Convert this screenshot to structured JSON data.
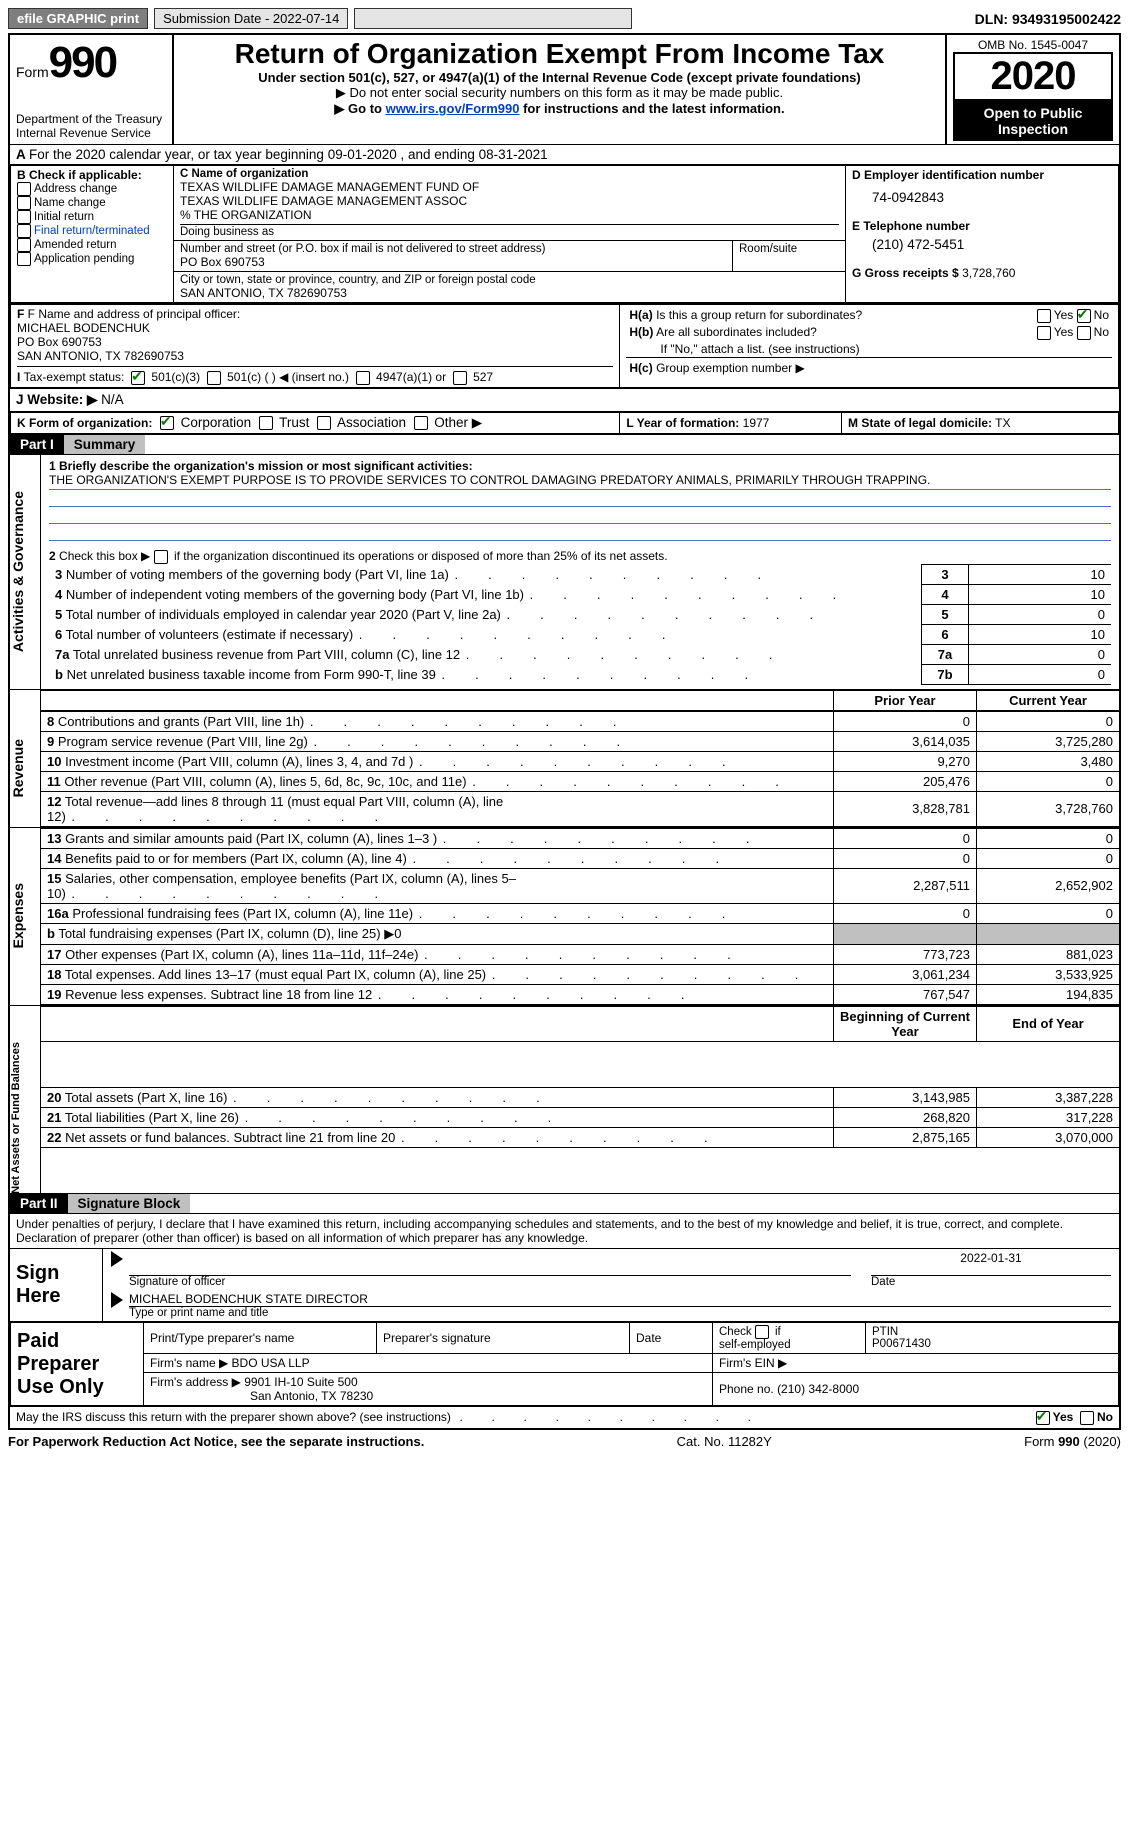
{
  "topbar": {
    "efile": "efile GRAPHIC print",
    "submission_label": "Submission Date - 2022-07-14",
    "dln": "DLN: 93493195002422"
  },
  "header": {
    "form_word": "Form",
    "form_num": "990",
    "dept": "Department of the Treasury",
    "irs": "Internal Revenue Service",
    "title": "Return of Organization Exempt From Income Tax",
    "sub1": "Under section 501(c), 527, or 4947(a)(1) of the Internal Revenue Code (except private foundations)",
    "sub2": "▶ Do not enter social security numbers on this form as it may be made public.",
    "sub3a": "▶ Go to ",
    "sub3link": "www.irs.gov/Form990",
    "sub3b": " for instructions and the latest information.",
    "omb": "OMB No. 1545-0047",
    "year": "2020",
    "open": "Open to Public Inspection"
  },
  "periodA": {
    "text_a": "For the 2020 calendar year, or tax year beginning 09-01-2020",
    "text_b": ", and ending 08-31-2021"
  },
  "boxB": {
    "label": "B Check if applicable:",
    "items": [
      "Address change",
      "Name change",
      "Initial return",
      "Final return/terminated",
      "Amended return",
      "Application pending"
    ],
    "colors": [
      "#000",
      "#000",
      "#000",
      "#0040c0",
      "#000",
      "#000"
    ]
  },
  "boxC": {
    "label": "C Name of organization",
    "name1": "TEXAS WILDLIFE DAMAGE MANAGEMENT FUND OF",
    "name2": "TEXAS WILDLIFE DAMAGE MANAGEMENT ASSOC",
    "name3": "% THE ORGANIZATION",
    "dba": "Doing business as",
    "street_label": "Number and street (or P.O. box if mail is not delivered to street address)",
    "room": "Room/suite",
    "street": "PO Box 690753",
    "city_label": "City or town, state or province, country, and ZIP or foreign postal code",
    "city": "SAN ANTONIO, TX  782690753"
  },
  "boxD": {
    "label": "D Employer identification number",
    "value": "74-0942843"
  },
  "boxE": {
    "label": "E Telephone number",
    "value": "(210) 472-5451"
  },
  "boxG": {
    "label": "G Gross receipts $",
    "value": "3,728,760"
  },
  "boxF": {
    "label": "F Name and address of principal officer:",
    "name": "MICHAEL BODENCHUK",
    "addr1": "PO Box 690753",
    "addr2": "SAN ANTONIO, TX  782690753"
  },
  "boxH": {
    "ha": "H(a)  Is this a group return for subordinates?",
    "hb": "H(b)  Are all subordinates included?",
    "hnote": "If \"No,\" attach a list. (see instructions)",
    "hc": "H(c)  Group exemption number ▶",
    "yes": "Yes",
    "no": "No"
  },
  "boxI": {
    "label": "Tax-exempt status:",
    "opts": [
      "501(c)(3)",
      "501(c) (  ) ◀ (insert no.)",
      "4947(a)(1) or",
      "527"
    ]
  },
  "boxJ": {
    "label": "J   Website: ▶",
    "value": "N/A"
  },
  "boxK": {
    "label": "K Form of organization:",
    "opts": [
      "Corporation",
      "Trust",
      "Association",
      "Other ▶"
    ]
  },
  "boxL": {
    "label": "L Year of formation:",
    "value": "1977"
  },
  "boxM": {
    "label": "M State of legal domicile:",
    "value": "TX"
  },
  "part1": {
    "label": "Part I",
    "title": "Summary"
  },
  "summary": {
    "line1_label": "1  Briefly describe the organization's mission or most significant activities:",
    "line1_text": "THE ORGANIZATION'S EXEMPT PURPOSE IS TO PROVIDE SERVICES TO CONTROL DAMAGING PREDATORY ANIMALS, PRIMARILY THROUGH TRAPPING.",
    "line2": "2   Check this box ▶           if the organization discontinued its operations or disposed of more than 25% of its net assets.",
    "govLabel": "Activities & Governance",
    "revLabel": "Revenue",
    "expLabel": "Expenses",
    "netLabel": "Net Assets or Fund Balances",
    "hdr_prior": "Prior Year",
    "hdr_current": "Current Year",
    "hdr_begin": "Beginning of Current Year",
    "hdr_end": "End of Year",
    "gov_lines": [
      {
        "n": "3",
        "t": "Number of voting members of the governing body (Part VI, line 1a)",
        "box": "3",
        "v": "10"
      },
      {
        "n": "4",
        "t": "Number of independent voting members of the governing body (Part VI, line 1b)",
        "box": "4",
        "v": "10"
      },
      {
        "n": "5",
        "t": "Total number of individuals employed in calendar year 2020 (Part V, line 2a)",
        "box": "5",
        "v": "0"
      },
      {
        "n": "6",
        "t": "Total number of volunteers (estimate if necessary)",
        "box": "6",
        "v": "10"
      },
      {
        "n": "7a",
        "t": "Total unrelated business revenue from Part VIII, column (C), line 12",
        "box": "7a",
        "v": "0"
      },
      {
        "n": "b",
        "t": "Net unrelated business taxable income from Form 990-T, line 39",
        "box": "7b",
        "v": "0"
      }
    ],
    "rev_lines": [
      {
        "n": "8",
        "t": "Contributions and grants (Part VIII, line 1h)",
        "p": "0",
        "c": "0"
      },
      {
        "n": "9",
        "t": "Program service revenue (Part VIII, line 2g)",
        "p": "3,614,035",
        "c": "3,725,280"
      },
      {
        "n": "10",
        "t": "Investment income (Part VIII, column (A), lines 3, 4, and 7d )",
        "p": "9,270",
        "c": "3,480"
      },
      {
        "n": "11",
        "t": "Other revenue (Part VIII, column (A), lines 5, 6d, 8c, 9c, 10c, and 11e)",
        "p": "205,476",
        "c": "0"
      },
      {
        "n": "12",
        "t": "Total revenue—add lines 8 through 11 (must equal Part VIII, column (A), line 12)",
        "p": "3,828,781",
        "c": "3,728,760"
      }
    ],
    "exp_lines": [
      {
        "n": "13",
        "t": "Grants and similar amounts paid (Part IX, column (A), lines 1–3 )",
        "p": "0",
        "c": "0"
      },
      {
        "n": "14",
        "t": "Benefits paid to or for members (Part IX, column (A), line 4)",
        "p": "0",
        "c": "0"
      },
      {
        "n": "15",
        "t": "Salaries, other compensation, employee benefits (Part IX, column (A), lines 5–10)",
        "p": "2,287,511",
        "c": "2,652,902"
      },
      {
        "n": "16a",
        "t": "Professional fundraising fees (Part IX, column (A), line 11e)",
        "p": "0",
        "c": "0"
      },
      {
        "n": "b",
        "t": "Total fundraising expenses (Part IX, column (D), line 25) ▶0",
        "p": "",
        "c": "",
        "grey": true
      },
      {
        "n": "17",
        "t": "Other expenses (Part IX, column (A), lines 11a–11d, 11f–24e)",
        "p": "773,723",
        "c": "881,023"
      },
      {
        "n": "18",
        "t": "Total expenses. Add lines 13–17 (must equal Part IX, column (A), line 25)",
        "p": "3,061,234",
        "c": "3,533,925"
      },
      {
        "n": "19",
        "t": "Revenue less expenses. Subtract line 18 from line 12",
        "p": "767,547",
        "c": "194,835"
      }
    ],
    "net_lines": [
      {
        "n": "20",
        "t": "Total assets (Part X, line 16)",
        "p": "3,143,985",
        "c": "3,387,228"
      },
      {
        "n": "21",
        "t": "Total liabilities (Part X, line 26)",
        "p": "268,820",
        "c": "317,228"
      },
      {
        "n": "22",
        "t": "Net assets or fund balances. Subtract line 21 from line 20",
        "p": "2,875,165",
        "c": "3,070,000"
      }
    ]
  },
  "part2": {
    "label": "Part II",
    "title": "Signature Block"
  },
  "declaration": "Under penalties of perjury, I declare that I have examined this return, including accompanying schedules and statements, and to the best of my knowledge and belief, it is true, correct, and complete. Declaration of preparer (other than officer) is based on all information of which preparer has any knowledge.",
  "sign": {
    "here": "Sign Here",
    "sig_officer": "Signature of officer",
    "date": "Date",
    "date_val": "2022-01-31",
    "name": "MICHAEL BODENCHUK  STATE DIRECTOR",
    "name_label": "Type or print name and title"
  },
  "paid": {
    "label": "Paid Preparer Use Only",
    "col1": "Print/Type preparer's name",
    "col2": "Preparer's signature",
    "col3": "Date",
    "check": "Check          if self-employed",
    "ptin_l": "PTIN",
    "ptin": "P00671430",
    "firm_l": "Firm's name    ▶",
    "firm": "BDO USA LLP",
    "ein_l": "Firm's EIN ▶",
    "addr_l": "Firm's address ▶",
    "addr1": "9901 IH-10 Suite 500",
    "addr2": "San Antonio, TX  78230",
    "phone_l": "Phone no.",
    "phone": "(210) 342-8000"
  },
  "discuss": {
    "q": "May the IRS discuss this return with the preparer shown above? (see instructions)",
    "yes": "Yes",
    "no": "No"
  },
  "footer": {
    "left": "For Paperwork Reduction Act Notice, see the separate instructions.",
    "mid": "Cat. No. 11282Y",
    "right": "Form 990 (2020)"
  }
}
